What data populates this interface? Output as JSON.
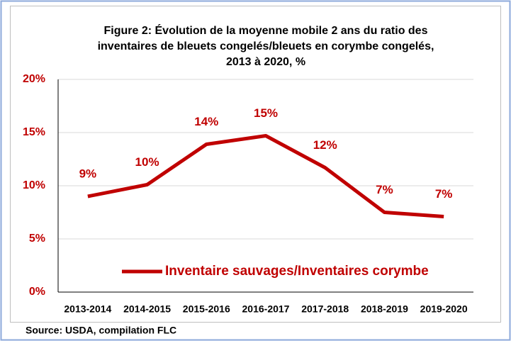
{
  "chart_data": {
    "type": "line",
    "title": [
      "Figure 2: Évolution de la moyenne mobile 2 ans du ratio des",
      "inventaires de bleuets congelés/bleuets en corymbe congelés,",
      "2013 à 2020, %"
    ],
    "categories": [
      "2013-2014",
      "2014-2015",
      "2015-2016",
      "2016-2017",
      "2017-2018",
      "2018-2019",
      "2019-2020"
    ],
    "series": [
      {
        "name": "Inventaire sauvages/Inventaires corymbe",
        "color": "#c00000",
        "values": [
          9.0,
          10.1,
          13.9,
          14.7,
          11.7,
          7.5,
          7.1
        ],
        "value_labels": [
          "9%",
          "10%",
          "14%",
          "15%",
          "12%",
          "7%",
          "7%"
        ]
      }
    ],
    "ylim": [
      0,
      20
    ],
    "yticks": [
      {
        "value": 0,
        "label": "0%"
      },
      {
        "value": 5,
        "label": "5%"
      },
      {
        "value": 10,
        "label": "10%"
      },
      {
        "value": 15,
        "label": "15%"
      },
      {
        "value": 20,
        "label": "20%"
      }
    ],
    "grid": true,
    "source": "Source: USDA, compilation FLC"
  }
}
